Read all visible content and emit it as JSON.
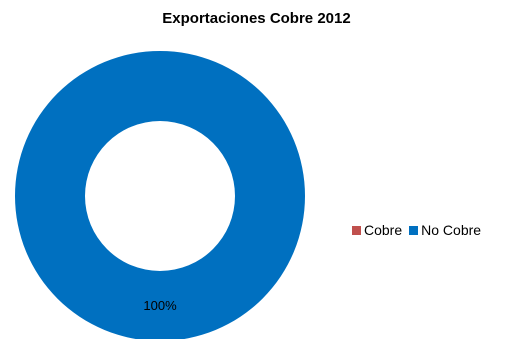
{
  "chart_data": {
    "type": "pie",
    "variant": "donut",
    "title": "Exportaciones Cobre 2012",
    "categories": [
      "Cobre",
      "No Cobre"
    ],
    "values": [
      0,
      100
    ],
    "data_labels": [
      "",
      "100%"
    ],
    "colors": [
      "#C0504D",
      "#0070C0"
    ],
    "legend_position": "right"
  }
}
